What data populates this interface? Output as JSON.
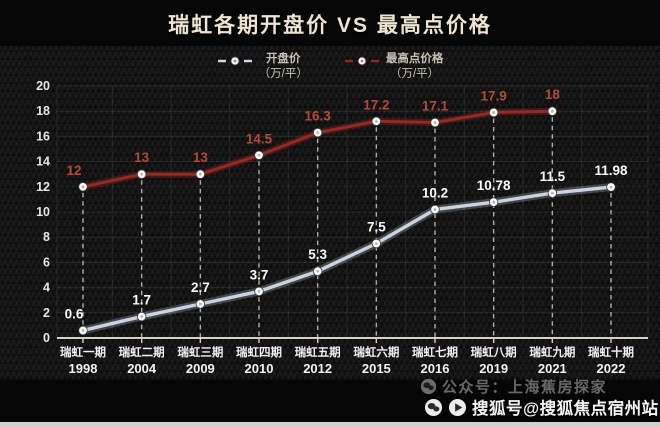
{
  "title": "瑞虹各期开盘价 VS 最高点价格",
  "legend": {
    "open": {
      "label": "开盘价",
      "unit": "（万/平）"
    },
    "peak": {
      "label": "最高点价格",
      "unit": "（万/平）"
    }
  },
  "chart_data": {
    "type": "line",
    "title": "瑞虹各期开盘价 VS 最高点价格",
    "categories": [
      "瑞虹一期",
      "瑞虹二期",
      "瑞虹三期",
      "瑞虹四期",
      "瑞虹五期",
      "瑞虹六期",
      "瑞虹七期",
      "瑞虹八期",
      "瑞虹九期",
      "瑞虹十期"
    ],
    "years": [
      "1998",
      "2004",
      "2009",
      "2010",
      "2012",
      "2015",
      "2016",
      "2019",
      "2021",
      "2022"
    ],
    "series": [
      {
        "name": "开盘价（万/平）",
        "color": "#cad3e2",
        "glow": "rgba(205,215,230,0.25)",
        "label_color": "#fafafa",
        "values": [
          0.6,
          1.7,
          2.7,
          3.7,
          5.3,
          7.5,
          10.2,
          10.78,
          11.5,
          11.98
        ]
      },
      {
        "name": "最高点价格（万/平）",
        "color": "#912b24",
        "glow": "rgba(150,35,28,0.35)",
        "label_color": "#b44a3a",
        "values": [
          12,
          13,
          13,
          14.5,
          16.3,
          17.2,
          17.1,
          17.9,
          18,
          null
        ]
      }
    ],
    "ylim": [
      0,
      20
    ],
    "yticks": [
      0,
      2,
      4,
      6,
      8,
      10,
      12,
      14,
      16,
      18,
      20
    ],
    "grid": true,
    "legend_position": "top",
    "marker": "white-circle",
    "drop_lines": "dashed-vertical"
  },
  "watermarks": {
    "faded": "公众号：上海蕉房探家",
    "sohu": "搜狐号@搜狐焦点宿州站"
  },
  "colors": {
    "background": "#060606",
    "title_text": "#eee4d2",
    "grid_line": "rgba(255,255,255,0.09)",
    "axis_line": "#d6d2ca",
    "drop_line": "#e0e0e0",
    "x_label": "#f2f2f2",
    "y_label": "#e6e6e6"
  }
}
